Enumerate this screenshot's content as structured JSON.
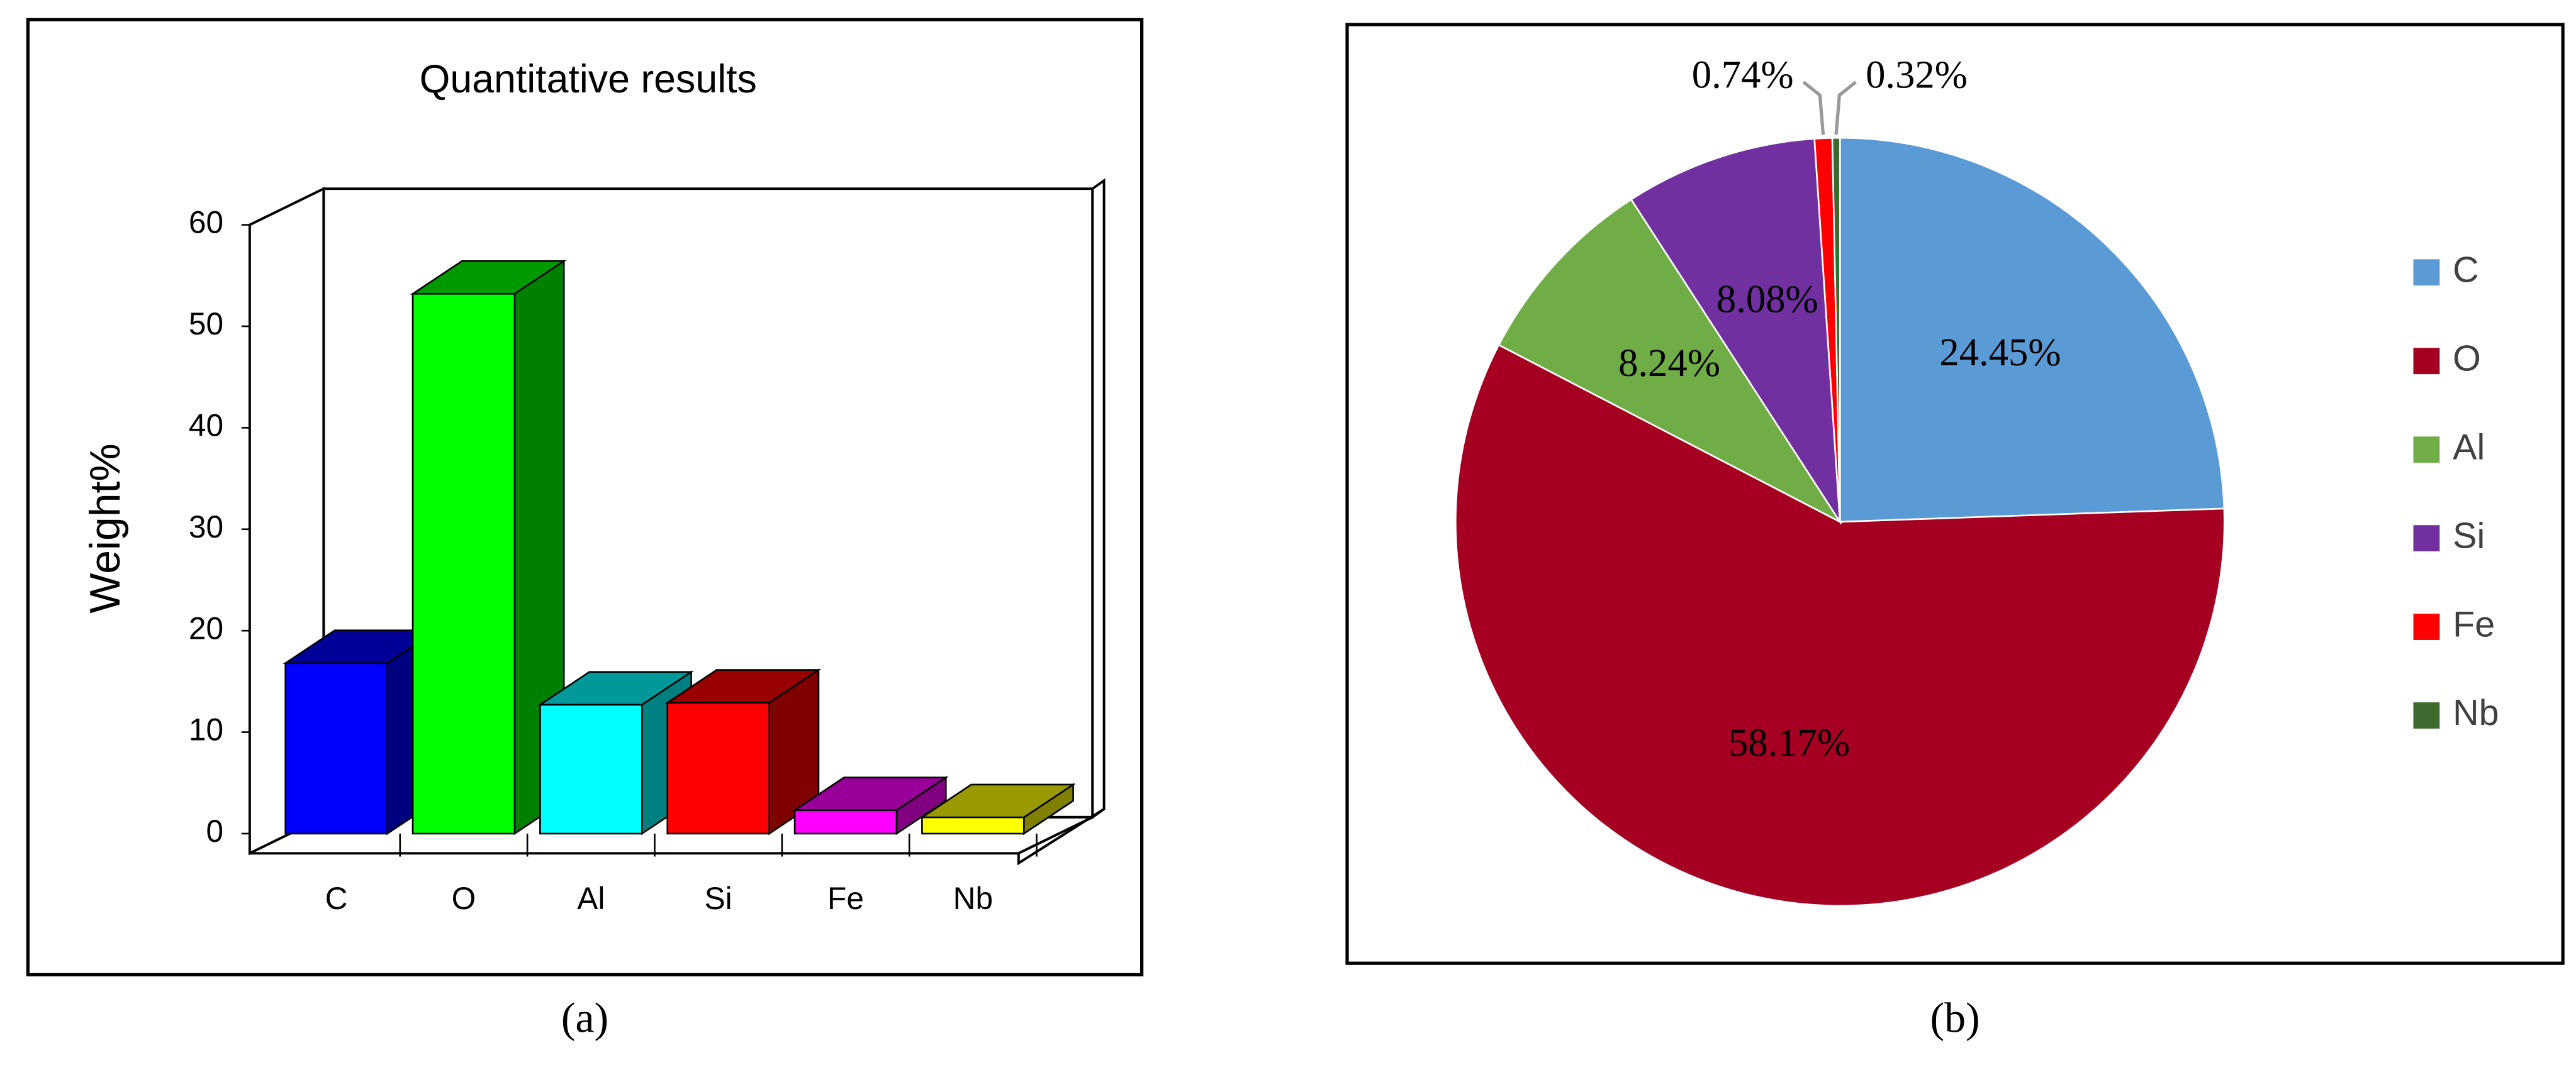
{
  "chart_data": [
    {
      "type": "bar3d",
      "title": "Quantitative results",
      "y_label": "Weight%",
      "caption": "(a)",
      "categories": [
        "C",
        "O",
        "Al",
        "Si",
        "Fe",
        "Nb"
      ],
      "values": [
        16.8,
        53.2,
        12.7,
        12.9,
        2.3,
        1.6
      ],
      "colors": [
        "#0000ff",
        "#00ff00",
        "#00ffff",
        "#ff0000",
        "#ff00ff",
        "#ffff00"
      ],
      "ylim": [
        0,
        60
      ],
      "yticks": [
        0,
        10,
        20,
        30,
        40,
        50,
        60
      ]
    },
    {
      "type": "pie",
      "caption": "(b)",
      "legend": "right",
      "categories": [
        "C",
        "O",
        "Al",
        "Si",
        "Fe",
        "Nb"
      ],
      "values": [
        24.45,
        58.17,
        8.24,
        8.08,
        0.74,
        0.32
      ],
      "value_labels": [
        "24.45%",
        "58.17%",
        "8.24%",
        "8.08%",
        "0.74%",
        "0.32%"
      ],
      "colors": [
        "#5b9bd5",
        "#a50021",
        "#70ad47",
        "#7030a0",
        "#ff0000",
        "#3d6b2e"
      ]
    }
  ]
}
